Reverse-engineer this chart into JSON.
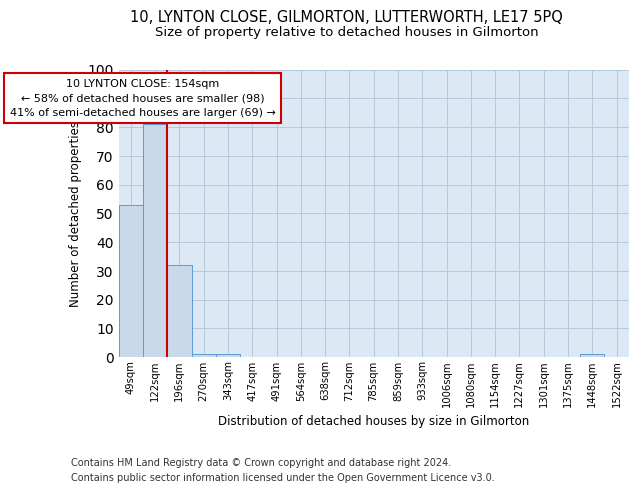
{
  "title1": "10, LYNTON CLOSE, GILMORTON, LUTTERWORTH, LE17 5PQ",
  "title2": "Size of property relative to detached houses in Gilmorton",
  "xlabel": "Distribution of detached houses by size in Gilmorton",
  "ylabel": "Number of detached properties",
  "categories": [
    "49sqm",
    "122sqm",
    "196sqm",
    "270sqm",
    "343sqm",
    "417sqm",
    "491sqm",
    "564sqm",
    "638sqm",
    "712sqm",
    "785sqm",
    "859sqm",
    "933sqm",
    "1006sqm",
    "1080sqm",
    "1154sqm",
    "1227sqm",
    "1301sqm",
    "1375sqm",
    "1448sqm",
    "1522sqm"
  ],
  "values": [
    53,
    81,
    32,
    1,
    1,
    0,
    0,
    0,
    0,
    0,
    0,
    0,
    0,
    0,
    0,
    0,
    0,
    0,
    0,
    1,
    0
  ],
  "bar_color": "#c9d9ec",
  "bar_edge_color": "#5b9bd5",
  "annotation_text_line1": "10 LYNTON CLOSE: 154sqm",
  "annotation_text_line2": "← 58% of detached houses are smaller (98)",
  "annotation_text_line3": "41% of semi-detached houses are larger (69) →",
  "annotation_box_color": "#ffffff",
  "annotation_box_edge": "#cc0000",
  "vline_color": "#cc0000",
  "vline_x": 1.5,
  "background_color": "#ffffff",
  "axes_bg_color": "#dce9f5",
  "grid_color": "#b0c4d8",
  "footer1": "Contains HM Land Registry data © Crown copyright and database right 2024.",
  "footer2": "Contains public sector information licensed under the Open Government Licence v3.0.",
  "ylim": [
    0,
    100
  ],
  "title_fontsize": 10.5,
  "subtitle_fontsize": 9.5,
  "tick_fontsize": 7.2,
  "ylabel_fontsize": 8.5,
  "xlabel_fontsize": 8.5,
  "footer_fontsize": 7.0,
  "ann_fontsize": 8.0
}
